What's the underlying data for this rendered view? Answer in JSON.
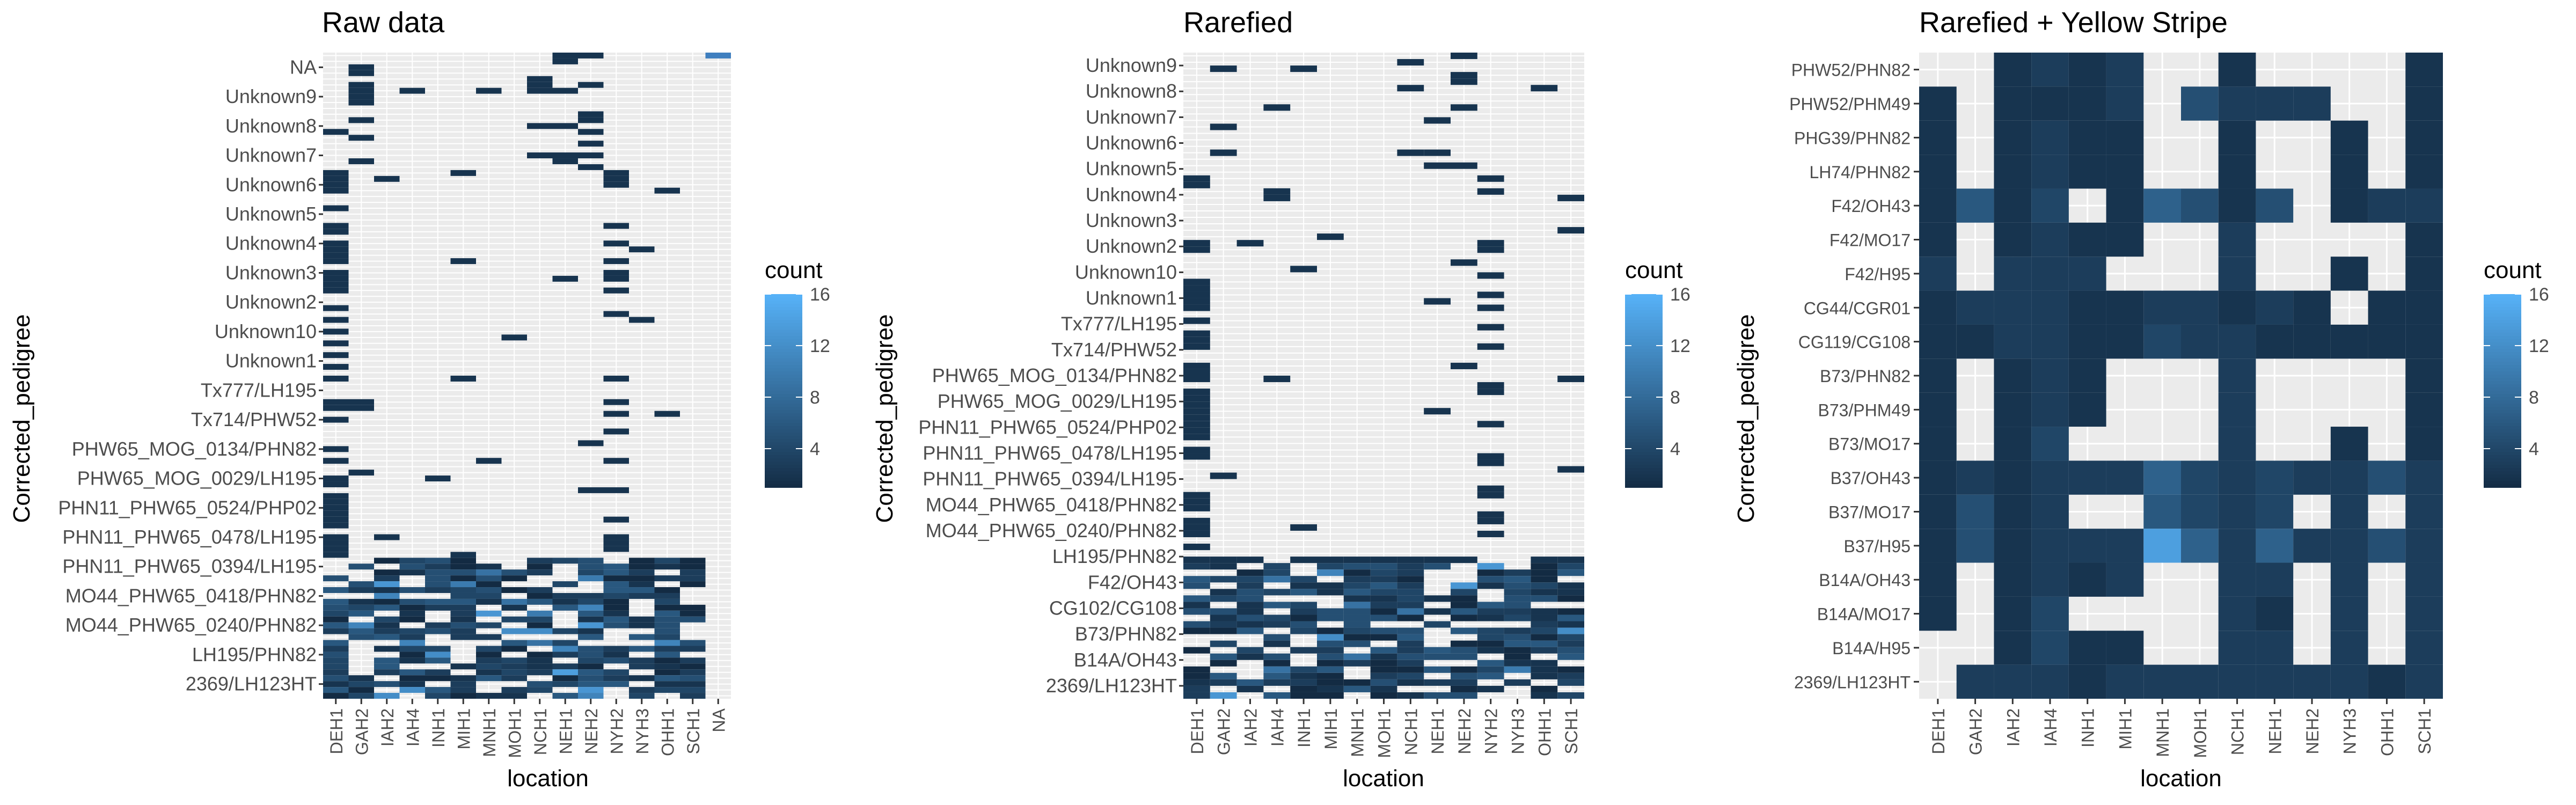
{
  "chart_data": [
    {
      "type": "heatmap",
      "title": "Raw data",
      "xlabel": "location",
      "ylabel": "Corrected_pedigree",
      "x_categories": [
        "DEH1",
        "GAH2",
        "IAH2",
        "IAH4",
        "INH1",
        "MIH1",
        "MNH1",
        "MOH1",
        "NCH1",
        "NEH1",
        "NEH2",
        "NYH2",
        "NYH3",
        "OHH1",
        "SCH1",
        "NA"
      ],
      "y_tick_labels_top_to_bottom": [
        "NA",
        "Unknown9",
        "Unknown8",
        "Unknown7",
        "Unknown6",
        "Unknown5",
        "Unknown4",
        "Unknown3",
        "Unknown2",
        "Unknown10",
        "Unknown1",
        "Tx777/LH195",
        "Tx714/PHW52",
        "PHW65_MOG_0134/PHN82",
        "PHW65_MOG_0029/LH195",
        "PHN11_PHW65_0524/PHP02",
        "PHN11_PHW65_0478/LH195",
        "PHN11_PHW65_0394/LH195",
        "MO44_PHW65_0418/PHN82",
        "MO44_PHW65_0240/PHN82",
        "LH195/PHN82",
        "2369/LH123HT"
      ],
      "legend_title": "count",
      "legend_ticks": [
        4,
        8,
        12,
        16
      ],
      "color_low": "#132B43",
      "color_high": "#56B1F7",
      "value_range": [
        1,
        16
      ]
    },
    {
      "type": "heatmap",
      "title": "Rarefied",
      "xlabel": "location",
      "ylabel": "Corrected_pedigree",
      "x_categories": [
        "DEH1",
        "GAH2",
        "IAH2",
        "IAH4",
        "INH1",
        "MIH1",
        "MNH1",
        "MOH1",
        "NCH1",
        "NEH1",
        "NEH2",
        "NYH2",
        "NYH3",
        "OHH1",
        "SCH1"
      ],
      "y_tick_labels_top_to_bottom": [
        "Unknown9",
        "Unknown8",
        "Unknown7",
        "Unknown6",
        "Unknown5",
        "Unknown4",
        "Unknown3",
        "Unknown2",
        "Unknown10",
        "Unknown1",
        "Tx777/LH195",
        "Tx714/PHW52",
        "PHW65_MOG_0134/PHN82",
        "PHW65_MOG_0029/LH195",
        "PHN11_PHW65_0524/PHP02",
        "PHN11_PHW65_0478/LH195",
        "PHN11_PHW65_0394/LH195",
        "MO44_PHW65_0418/PHN82",
        "MO44_PHW65_0240/PHN82",
        "LH195/PHN82",
        "F42/OH43",
        "CG102/CG108",
        "B73/PHN82",
        "B14A/OH43",
        "2369/LH123HT"
      ],
      "legend_title": "count",
      "legend_ticks": [
        4,
        8,
        12,
        16
      ],
      "color_low": "#132B43",
      "color_high": "#56B1F7",
      "value_range": [
        1,
        16
      ]
    },
    {
      "type": "heatmap",
      "title": "Rarefied + Yellow Stripe",
      "xlabel": "location",
      "ylabel": "Corrected_pedigree",
      "x_categories": [
        "DEH1",
        "GAH2",
        "IAH2",
        "IAH4",
        "INH1",
        "MIH1",
        "MNH1",
        "MOH1",
        "NCH1",
        "NEH1",
        "NEH2",
        "NYH3",
        "OHH1",
        "SCH1"
      ],
      "y_categories_top_to_bottom": [
        "PHW52/PHN82",
        "PHW52/PHM49",
        "PHG39/PHN82",
        "LH74/PHN82",
        "F42/OH43",
        "F42/MO17",
        "F42/H95",
        "CG44/CGR01",
        "CG119/CG108",
        "B73/PHN82",
        "B73/PHM49",
        "B73/MO17",
        "B37/OH43",
        "B37/MO17",
        "B37/H95",
        "B14A/OH43",
        "B14A/MO17",
        "B14A/H95",
        "2369/LH123HT"
      ],
      "values": [
        [
          0,
          0,
          2,
          3,
          2,
          3,
          0,
          0,
          2,
          0,
          0,
          0,
          0,
          2
        ],
        [
          2,
          0,
          2,
          2,
          2,
          3,
          0,
          5,
          3,
          3,
          3,
          0,
          0,
          2
        ],
        [
          2,
          0,
          2,
          3,
          2,
          2,
          0,
          0,
          2,
          0,
          0,
          2,
          0,
          2
        ],
        [
          2,
          0,
          2,
          3,
          2,
          2,
          0,
          0,
          2,
          0,
          0,
          2,
          0,
          2
        ],
        [
          2,
          6,
          2,
          4,
          0,
          2,
          7,
          5,
          2,
          5,
          0,
          2,
          3,
          3
        ],
        [
          2,
          0,
          2,
          3,
          2,
          2,
          0,
          0,
          3,
          0,
          0,
          0,
          0,
          2
        ],
        [
          3,
          0,
          3,
          3,
          3,
          0,
          0,
          0,
          3,
          0,
          0,
          2,
          0,
          2
        ],
        [
          2,
          3,
          3,
          3,
          2,
          2,
          3,
          3,
          2,
          3,
          2,
          0,
          2,
          2
        ],
        [
          2,
          2,
          3,
          3,
          2,
          2,
          4,
          3,
          3,
          2,
          2,
          2,
          2,
          2
        ],
        [
          2,
          0,
          2,
          3,
          2,
          0,
          0,
          0,
          3,
          0,
          0,
          0,
          0,
          2
        ],
        [
          2,
          0,
          2,
          3,
          2,
          0,
          0,
          0,
          3,
          0,
          0,
          0,
          0,
          2
        ],
        [
          2,
          0,
          2,
          4,
          0,
          0,
          0,
          0,
          3,
          0,
          0,
          2,
          0,
          2
        ],
        [
          2,
          3,
          2,
          3,
          3,
          3,
          7,
          4,
          3,
          4,
          3,
          3,
          5,
          3
        ],
        [
          2,
          5,
          2,
          3,
          0,
          0,
          6,
          4,
          3,
          4,
          0,
          3,
          0,
          3
        ],
        [
          2,
          5,
          2,
          3,
          3,
          3,
          14,
          7,
          3,
          7,
          3,
          3,
          5,
          3
        ],
        [
          2,
          0,
          2,
          3,
          2,
          3,
          0,
          0,
          3,
          3,
          0,
          3,
          0,
          3
        ],
        [
          2,
          0,
          2,
          4,
          0,
          0,
          0,
          0,
          3,
          2,
          0,
          3,
          0,
          3
        ],
        [
          0,
          0,
          2,
          4,
          2,
          2,
          0,
          0,
          3,
          3,
          0,
          3,
          0,
          3
        ],
        [
          0,
          3,
          3,
          3,
          2,
          3,
          3,
          3,
          3,
          3,
          3,
          3,
          2,
          3
        ]
      ],
      "legend_title": "count",
      "legend_ticks": [
        4,
        8,
        12,
        16
      ],
      "color_low": "#132B43",
      "color_high": "#56B1F7",
      "value_range": [
        1,
        16
      ]
    }
  ]
}
